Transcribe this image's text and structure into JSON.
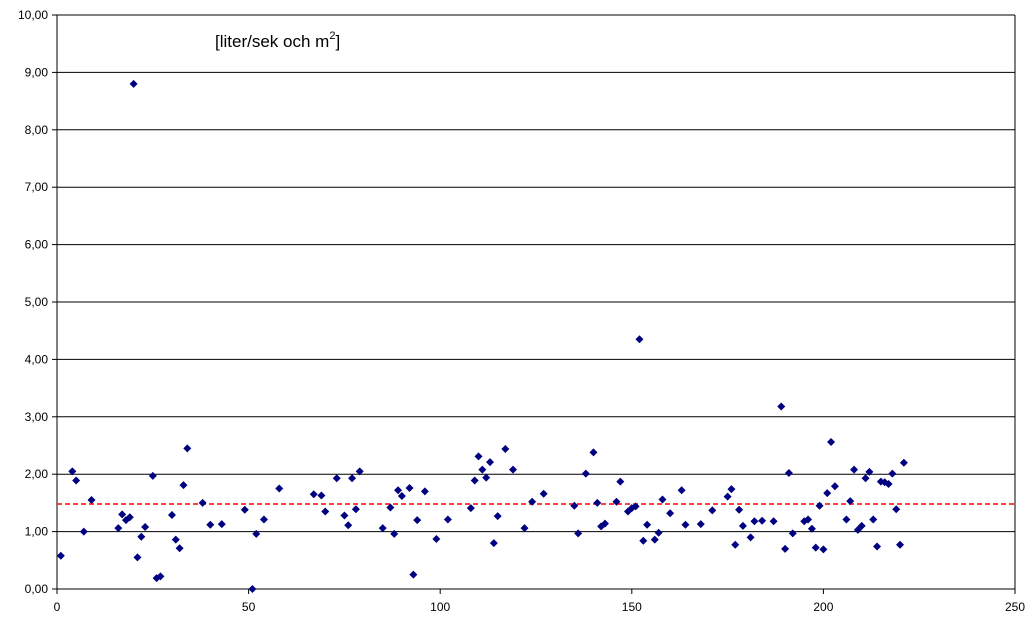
{
  "chart_data": {
    "type": "scatter",
    "unit_label": {
      "text": "[liter/sek och m",
      "superscript": "2",
      "close": "]"
    },
    "xlim": [
      0,
      250
    ],
    "ylim": [
      0,
      10
    ],
    "x_ticks": [
      "0",
      "50",
      "100",
      "150",
      "200",
      "250"
    ],
    "y_ticks": [
      "0,00",
      "1,00",
      "2,00",
      "3,00",
      "4,00",
      "5,00",
      "6,00",
      "7,00",
      "8,00",
      "9,00",
      "10,00"
    ],
    "grid": "horizontal",
    "legend": "none",
    "marker_color": "#000080",
    "reference_line": {
      "y": 1.48,
      "color": "#ff0000",
      "style": "dashed"
    },
    "points": [
      [
        1,
        0.58
      ],
      [
        4,
        2.05
      ],
      [
        5,
        1.89
      ],
      [
        7,
        1.0
      ],
      [
        9,
        1.55
      ],
      [
        16,
        1.06
      ],
      [
        17,
        1.3
      ],
      [
        18,
        1.2
      ],
      [
        19,
        1.25
      ],
      [
        20,
        8.8
      ],
      [
        21,
        0.55
      ],
      [
        22,
        0.91
      ],
      [
        23,
        1.08
      ],
      [
        25,
        1.97
      ],
      [
        26,
        0.19
      ],
      [
        27,
        0.22
      ],
      [
        30,
        1.29
      ],
      [
        31,
        0.86
      ],
      [
        32,
        0.71
      ],
      [
        33,
        1.81
      ],
      [
        34,
        2.45
      ],
      [
        38,
        1.5
      ],
      [
        40,
        1.12
      ],
      [
        43,
        1.13
      ],
      [
        49,
        1.38
      ],
      [
        51,
        0.0
      ],
      [
        52,
        0.96
      ],
      [
        54,
        1.21
      ],
      [
        58,
        1.75
      ],
      [
        67,
        1.65
      ],
      [
        69,
        1.63
      ],
      [
        70,
        1.35
      ],
      [
        73,
        1.93
      ],
      [
        75,
        1.28
      ],
      [
        76,
        1.11
      ],
      [
        77,
        1.93
      ],
      [
        78,
        1.39
      ],
      [
        79,
        2.05
      ],
      [
        85,
        1.06
      ],
      [
        87,
        1.42
      ],
      [
        88,
        0.96
      ],
      [
        89,
        1.72
      ],
      [
        90,
        1.62
      ],
      [
        92,
        1.76
      ],
      [
        93,
        0.25
      ],
      [
        94,
        1.2
      ],
      [
        96,
        1.7
      ],
      [
        99,
        0.87
      ],
      [
        102,
        1.21
      ],
      [
        108,
        1.41
      ],
      [
        109,
        1.89
      ],
      [
        110,
        2.31
      ],
      [
        111,
        2.08
      ],
      [
        112,
        1.94
      ],
      [
        113,
        2.21
      ],
      [
        114,
        0.8
      ],
      [
        115,
        1.27
      ],
      [
        117,
        2.44
      ],
      [
        119,
        2.08
      ],
      [
        122,
        1.06
      ],
      [
        124,
        1.52
      ],
      [
        127,
        1.66
      ],
      [
        135,
        1.45
      ],
      [
        136,
        0.97
      ],
      [
        138,
        2.01
      ],
      [
        140,
        2.38
      ],
      [
        141,
        1.5
      ],
      [
        142,
        1.09
      ],
      [
        143,
        1.14
      ],
      [
        146,
        1.52
      ],
      [
        147,
        1.87
      ],
      [
        149,
        1.35
      ],
      [
        150,
        1.41
      ],
      [
        151,
        1.44
      ],
      [
        152,
        4.35
      ],
      [
        153,
        0.84
      ],
      [
        154,
        1.12
      ],
      [
        156,
        0.86
      ],
      [
        157,
        0.98
      ],
      [
        158,
        1.56
      ],
      [
        160,
        1.32
      ],
      [
        163,
        1.72
      ],
      [
        164,
        1.12
      ],
      [
        168,
        1.13
      ],
      [
        171,
        1.37
      ],
      [
        175,
        1.61
      ],
      [
        176,
        1.74
      ],
      [
        177,
        0.77
      ],
      [
        178,
        1.38
      ],
      [
        179,
        1.1
      ],
      [
        181,
        0.9
      ],
      [
        182,
        1.18
      ],
      [
        184,
        1.19
      ],
      [
        187,
        1.18
      ],
      [
        189,
        3.18
      ],
      [
        190,
        0.7
      ],
      [
        191,
        2.02
      ],
      [
        192,
        0.97
      ],
      [
        195,
        1.18
      ],
      [
        196,
        1.21
      ],
      [
        197,
        1.05
      ],
      [
        198,
        0.72
      ],
      [
        199,
        1.45
      ],
      [
        200,
        0.69
      ],
      [
        201,
        1.67
      ],
      [
        202,
        2.56
      ],
      [
        203,
        1.79
      ],
      [
        206,
        1.21
      ],
      [
        207,
        1.53
      ],
      [
        208,
        2.08
      ],
      [
        209,
        1.03
      ],
      [
        210,
        1.1
      ],
      [
        211,
        1.93
      ],
      [
        212,
        2.04
      ],
      [
        213,
        1.21
      ],
      [
        214,
        0.74
      ],
      [
        215,
        1.87
      ],
      [
        216,
        1.86
      ],
      [
        217,
        1.83
      ],
      [
        218,
        2.01
      ],
      [
        219,
        1.39
      ],
      [
        220,
        0.77
      ],
      [
        221,
        2.2
      ]
    ]
  }
}
